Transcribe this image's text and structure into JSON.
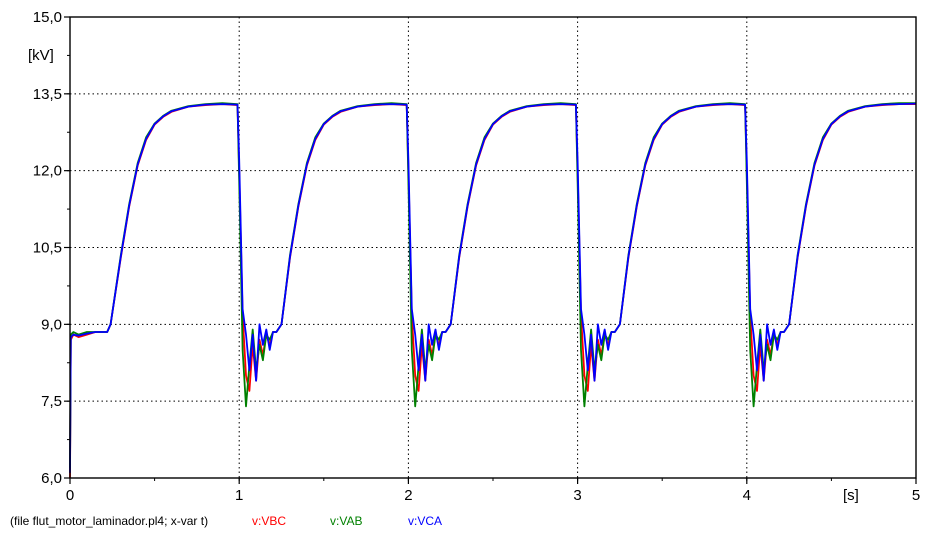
{
  "chart_data": {
    "type": "line",
    "xlim": [
      0,
      5
    ],
    "ylim": [
      6.0,
      15.0
    ],
    "x_ticks": [
      "0",
      "1",
      "2",
      "3",
      "4",
      "5"
    ],
    "y_ticks": [
      "6,0",
      "7,5",
      "9,0",
      "10,5",
      "12,0",
      "13,5",
      "15,0"
    ],
    "x_unit": "[s]",
    "y_unit": "[kV]",
    "grid": true,
    "footer": {
      "file_text": "(file flut_motor_laminador.pl4; x-var t)",
      "legend": [
        {
          "label": "v:VBC",
          "color": "#ff0000"
        },
        {
          "label": "v:VAB",
          "color": "#008000"
        },
        {
          "label": "v:VCA",
          "color": "#0000ff"
        }
      ]
    },
    "series": [
      {
        "name": "v:VBC",
        "color": "#ff0000",
        "x": [
          0,
          0.005,
          0.02,
          0.05,
          0.1,
          0.15,
          0.22,
          0.24,
          0.3,
          0.35,
          0.4,
          0.45,
          0.5,
          0.55,
          0.6,
          0.7,
          0.8,
          0.9,
          0.99,
          1.0,
          1.02,
          1.04,
          1.06,
          1.08,
          1.1,
          1.12,
          1.14,
          1.16,
          1.18,
          1.2,
          1.22,
          1.25,
          1.3,
          1.35,
          1.4,
          1.45,
          1.5,
          1.55,
          1.6,
          1.7,
          1.8,
          1.9,
          1.99,
          2.0,
          2.02,
          2.04,
          2.06,
          2.08,
          2.1,
          2.12,
          2.14,
          2.16,
          2.18,
          2.2,
          2.22,
          2.25,
          2.3,
          2.35,
          2.4,
          2.45,
          2.5,
          2.55,
          2.6,
          2.7,
          2.8,
          2.9,
          2.99,
          3.0,
          3.02,
          3.04,
          3.06,
          3.08,
          3.1,
          3.12,
          3.14,
          3.16,
          3.18,
          3.2,
          3.22,
          3.25,
          3.3,
          3.35,
          3.4,
          3.45,
          3.5,
          3.55,
          3.6,
          3.7,
          3.8,
          3.9,
          3.99,
          4.0,
          4.02,
          4.04,
          4.06,
          4.08,
          4.1,
          4.12,
          4.14,
          4.16,
          4.18,
          4.2,
          4.22,
          4.25,
          4.3,
          4.35,
          4.4,
          4.45,
          4.5,
          4.55,
          4.6,
          4.7,
          4.8,
          4.9,
          5.0
        ],
        "y": [
          6.0,
          8.7,
          8.8,
          8.75,
          8.8,
          8.85,
          8.85,
          9.0,
          10.3,
          11.3,
          12.1,
          12.6,
          12.9,
          13.05,
          13.15,
          13.25,
          13.28,
          13.3,
          13.28,
          12.0,
          9.2,
          8.0,
          7.7,
          8.6,
          7.9,
          8.7,
          8.4,
          8.8,
          8.6,
          8.85,
          8.85,
          9.0,
          10.3,
          11.3,
          12.1,
          12.6,
          12.9,
          13.05,
          13.15,
          13.25,
          13.28,
          13.3,
          13.28,
          12.0,
          9.2,
          8.0,
          7.7,
          8.6,
          7.9,
          8.7,
          8.4,
          8.8,
          8.6,
          8.85,
          8.85,
          9.0,
          10.3,
          11.3,
          12.1,
          12.6,
          12.9,
          13.05,
          13.15,
          13.25,
          13.28,
          13.3,
          13.28,
          12.0,
          9.2,
          8.0,
          7.7,
          8.6,
          7.9,
          8.7,
          8.4,
          8.8,
          8.6,
          8.85,
          8.85,
          9.0,
          10.3,
          11.3,
          12.1,
          12.6,
          12.9,
          13.05,
          13.15,
          13.25,
          13.28,
          13.3,
          13.28,
          12.0,
          9.2,
          8.0,
          7.7,
          8.6,
          7.9,
          8.7,
          8.4,
          8.8,
          8.6,
          8.85,
          8.85,
          9.0,
          10.3,
          11.3,
          12.1,
          12.6,
          12.9,
          13.05,
          13.15,
          13.25,
          13.28,
          13.3,
          13.3
        ]
      },
      {
        "name": "v:VAB",
        "color": "#008000",
        "x": [
          0,
          0.005,
          0.02,
          0.05,
          0.1,
          0.15,
          0.22,
          0.24,
          0.3,
          0.35,
          0.4,
          0.45,
          0.5,
          0.55,
          0.6,
          0.7,
          0.8,
          0.9,
          0.99,
          1.0,
          1.02,
          1.04,
          1.06,
          1.08,
          1.1,
          1.12,
          1.14,
          1.16,
          1.18,
          1.2,
          1.22,
          1.25,
          1.3,
          1.35,
          1.4,
          1.45,
          1.5,
          1.55,
          1.6,
          1.7,
          1.8,
          1.9,
          1.99,
          2.0,
          2.02,
          2.04,
          2.06,
          2.08,
          2.1,
          2.12,
          2.14,
          2.16,
          2.18,
          2.2,
          2.22,
          2.25,
          2.3,
          2.35,
          2.4,
          2.45,
          2.5,
          2.55,
          2.6,
          2.7,
          2.8,
          2.9,
          2.99,
          3.0,
          3.02,
          3.04,
          3.06,
          3.08,
          3.1,
          3.12,
          3.14,
          3.16,
          3.18,
          3.2,
          3.22,
          3.25,
          3.3,
          3.35,
          3.4,
          3.45,
          3.5,
          3.55,
          3.6,
          3.7,
          3.8,
          3.9,
          3.99,
          4.0,
          4.02,
          4.04,
          4.06,
          4.08,
          4.1,
          4.12,
          4.14,
          4.16,
          4.18,
          4.2,
          4.22,
          4.25,
          4.3,
          4.35,
          4.4,
          4.45,
          4.5,
          4.55,
          4.6,
          4.7,
          4.8,
          4.9,
          5.0
        ],
        "y": [
          6.2,
          8.8,
          8.85,
          8.8,
          8.85,
          8.85,
          8.85,
          9.0,
          10.35,
          11.35,
          12.15,
          12.65,
          12.92,
          13.07,
          13.17,
          13.26,
          13.3,
          13.32,
          13.3,
          11.8,
          8.5,
          7.4,
          8.2,
          8.9,
          8.1,
          8.6,
          8.3,
          8.8,
          8.7,
          8.85,
          8.85,
          9.0,
          10.35,
          11.35,
          12.15,
          12.65,
          12.92,
          13.07,
          13.17,
          13.26,
          13.3,
          13.32,
          13.3,
          11.8,
          8.5,
          7.4,
          8.2,
          8.9,
          8.1,
          8.6,
          8.3,
          8.8,
          8.7,
          8.85,
          8.85,
          9.0,
          10.35,
          11.35,
          12.15,
          12.65,
          12.92,
          13.07,
          13.17,
          13.26,
          13.3,
          13.32,
          13.3,
          11.8,
          8.5,
          7.4,
          8.2,
          8.9,
          8.1,
          8.6,
          8.3,
          8.8,
          8.7,
          8.85,
          8.85,
          9.0,
          10.35,
          11.35,
          12.15,
          12.65,
          12.92,
          13.07,
          13.17,
          13.26,
          13.3,
          13.32,
          13.3,
          11.8,
          8.5,
          7.4,
          8.2,
          8.9,
          8.1,
          8.6,
          8.3,
          8.8,
          8.7,
          8.85,
          8.85,
          9.0,
          10.35,
          11.35,
          12.15,
          12.65,
          12.92,
          13.07,
          13.17,
          13.26,
          13.3,
          13.32,
          13.32
        ]
      },
      {
        "name": "v:VCA",
        "color": "#0000ff",
        "x": [
          0,
          0.005,
          0.02,
          0.05,
          0.1,
          0.15,
          0.22,
          0.24,
          0.3,
          0.35,
          0.4,
          0.45,
          0.5,
          0.55,
          0.6,
          0.7,
          0.8,
          0.9,
          0.99,
          1.0,
          1.02,
          1.04,
          1.06,
          1.08,
          1.1,
          1.12,
          1.14,
          1.16,
          1.18,
          1.2,
          1.22,
          1.25,
          1.3,
          1.35,
          1.4,
          1.45,
          1.5,
          1.55,
          1.6,
          1.7,
          1.8,
          1.9,
          1.99,
          2.0,
          2.02,
          2.04,
          2.06,
          2.08,
          2.1,
          2.12,
          2.14,
          2.16,
          2.18,
          2.2,
          2.22,
          2.25,
          2.3,
          2.35,
          2.4,
          2.45,
          2.5,
          2.55,
          2.6,
          2.7,
          2.8,
          2.9,
          2.99,
          3.0,
          3.02,
          3.04,
          3.06,
          3.08,
          3.1,
          3.12,
          3.14,
          3.16,
          3.18,
          3.2,
          3.22,
          3.25,
          3.3,
          3.35,
          3.4,
          3.45,
          3.5,
          3.55,
          3.6,
          3.7,
          3.8,
          3.9,
          3.99,
          4.0,
          4.02,
          4.04,
          4.06,
          4.08,
          4.1,
          4.12,
          4.14,
          4.16,
          4.18,
          4.2,
          4.22,
          4.25,
          4.3,
          4.35,
          4.4,
          4.45,
          4.5,
          4.55,
          4.6,
          4.7,
          4.8,
          4.9,
          5.0
        ],
        "y": [
          6.1,
          8.75,
          8.8,
          8.78,
          8.82,
          8.85,
          8.85,
          9.0,
          10.32,
          11.32,
          12.12,
          12.62,
          12.91,
          13.06,
          13.16,
          13.25,
          13.29,
          13.3,
          13.29,
          12.2,
          9.3,
          8.8,
          8.1,
          8.8,
          7.9,
          9.0,
          8.6,
          8.9,
          8.5,
          8.85,
          8.85,
          9.0,
          10.32,
          11.32,
          12.12,
          12.62,
          12.91,
          13.06,
          13.16,
          13.25,
          13.29,
          13.3,
          13.29,
          12.2,
          9.3,
          8.8,
          8.1,
          8.8,
          7.9,
          9.0,
          8.6,
          8.9,
          8.5,
          8.85,
          8.85,
          9.0,
          10.32,
          11.32,
          12.12,
          12.62,
          12.91,
          13.06,
          13.16,
          13.25,
          13.29,
          13.3,
          13.29,
          12.2,
          9.3,
          8.8,
          8.1,
          8.8,
          7.9,
          9.0,
          8.6,
          8.9,
          8.5,
          8.85,
          8.85,
          9.0,
          10.32,
          11.32,
          12.12,
          12.62,
          12.91,
          13.06,
          13.16,
          13.25,
          13.29,
          13.3,
          13.29,
          12.2,
          9.3,
          8.8,
          8.1,
          8.8,
          7.9,
          9.0,
          8.6,
          8.9,
          8.5,
          8.85,
          8.85,
          9.0,
          10.32,
          11.32,
          12.12,
          12.62,
          12.91,
          13.06,
          13.16,
          13.25,
          13.29,
          13.3,
          13.31
        ]
      }
    ]
  }
}
